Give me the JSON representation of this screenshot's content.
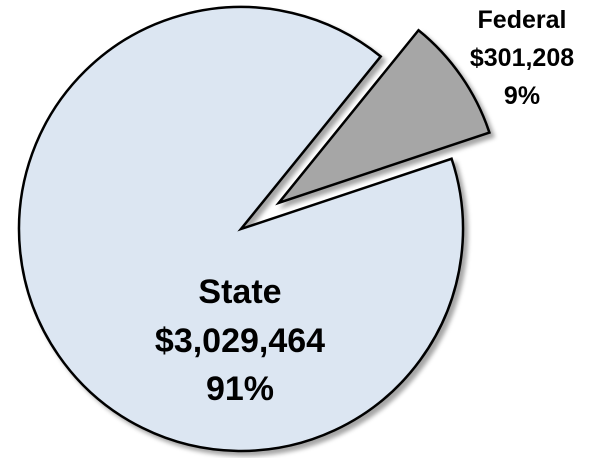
{
  "chart_data": {
    "type": "pie",
    "title": "",
    "exploded": true,
    "slices": [
      {
        "name": "State",
        "value": 3029464,
        "value_label": "$3,029,464",
        "percent_label": "91%",
        "percent": 91,
        "color": "#dce6f2"
      },
      {
        "name": "Federal",
        "value": 301208,
        "value_label": "$301,208",
        "percent_label": "9%",
        "percent": 9,
        "color": "#a6a6a6"
      }
    ]
  }
}
